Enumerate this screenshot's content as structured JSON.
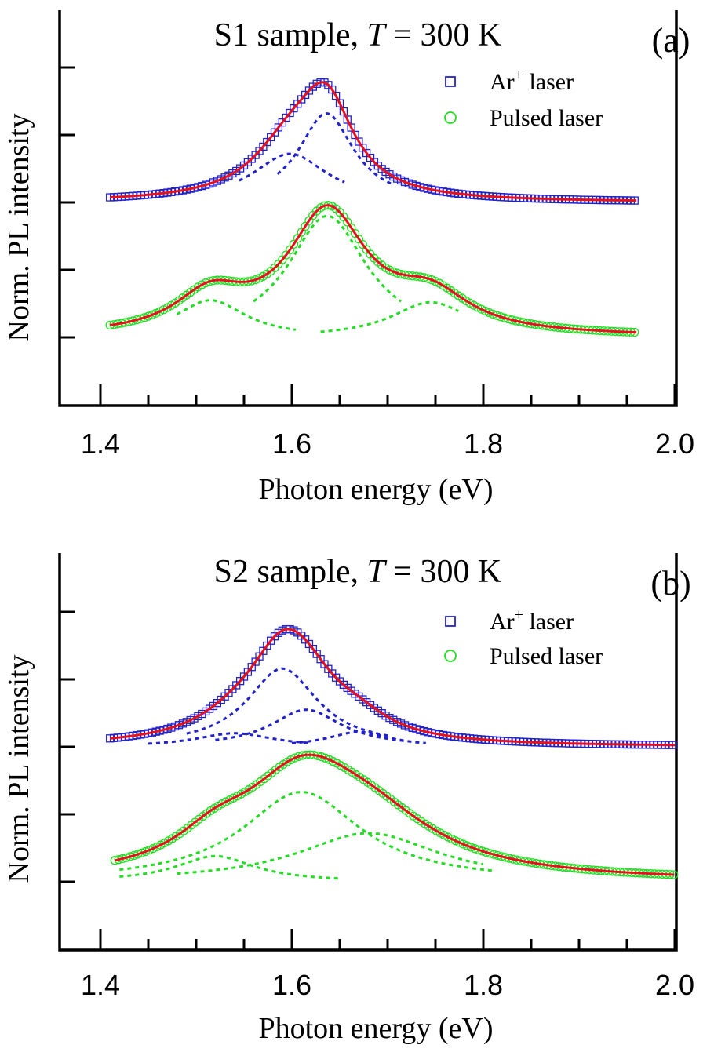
{
  "chart_data": [
    {
      "type": "line",
      "panel_label": "(a)",
      "title": {
        "prefix": "S1 sample,  ",
        "italic": "T",
        "suffix": " = 300 K"
      },
      "xlabel": "Photon energy (eV)",
      "ylabel": "Norm. PL intensity",
      "xlim": [
        1.4,
        2.0
      ],
      "x_ticks": [
        "1.4",
        "1.6",
        "1.8",
        "2.0"
      ],
      "legend_position": "top-right",
      "legend": [
        {
          "base": "Ar",
          "sup": "+",
          "rest": " laser",
          "marker": "square",
          "color": "#2222cc"
        },
        {
          "base": "Pulsed",
          "sup": "",
          "rest": " laser",
          "marker": "circle",
          "color": "#22dd22"
        }
      ],
      "series": [
        {
          "name": "Ar+ laser",
          "color": "#2222cc",
          "offset": 2,
          "x_range": [
            1.41,
            1.96
          ],
          "components": [
            {
              "center": 1.598,
              "amp": 0.72,
              "width": 0.048
            },
            {
              "center": 1.636,
              "amp": 1.32,
              "width": 0.035
            }
          ],
          "component_ranges": [
            [
              1.545,
              1.655
            ],
            [
              1.585,
              1.705
            ]
          ]
        },
        {
          "name": "Pulsed laser",
          "color": "#22dd22",
          "offset": 0,
          "x_range": [
            1.41,
            1.96
          ],
          "components": [
            {
              "center": 1.515,
              "amp": 0.55,
              "width": 0.045
            },
            {
              "center": 1.637,
              "amp": 1.8,
              "width": 0.05
            },
            {
              "center": 1.745,
              "amp": 0.52,
              "width": 0.05
            }
          ],
          "component_ranges": [
            [
              1.48,
              1.605
            ],
            [
              1.56,
              1.715
            ],
            [
              1.63,
              1.775
            ]
          ]
        }
      ]
    },
    {
      "type": "line",
      "panel_label": "(b)",
      "title": {
        "prefix": "S2 sample,  ",
        "italic": "T",
        "suffix": " = 300 K"
      },
      "xlabel": "Photon energy (eV)",
      "ylabel": "Norm. PL intensity",
      "xlim": [
        1.4,
        2.0
      ],
      "x_ticks": [
        "1.4",
        "1.6",
        "1.8",
        "2.0"
      ],
      "legend_position": "top-right",
      "legend": [
        {
          "base": "Ar",
          "sup": "+",
          "rest": " laser",
          "marker": "square",
          "color": "#2222cc"
        },
        {
          "base": "Pulsed",
          "sup": "",
          "rest": " laser",
          "marker": "circle",
          "color": "#22dd22"
        }
      ],
      "series": [
        {
          "name": "Ar+ laser",
          "color": "#2222cc",
          "offset": 2,
          "x_range": [
            1.41,
            2.0
          ],
          "components": [
            {
              "center": 1.59,
              "amp": 1.16,
              "width": 0.045
            },
            {
              "center": 1.615,
              "amp": 0.55,
              "width": 0.045
            },
            {
              "center": 1.54,
              "amp": 0.2,
              "width": 0.05
            },
            {
              "center": 1.67,
              "amp": 0.22,
              "width": 0.04
            }
          ],
          "component_ranges": [
            [
              1.49,
              1.7
            ],
            [
              1.52,
              1.72
            ],
            [
              1.45,
              1.62
            ],
            [
              1.6,
              1.74
            ]
          ]
        },
        {
          "name": "Pulsed laser",
          "color": "#22dd22",
          "offset": 0,
          "x_range": [
            1.415,
            2.0
          ],
          "components": [
            {
              "center": 1.61,
              "amp": 1.33,
              "width": 0.075
            },
            {
              "center": 1.52,
              "amp": 0.38,
              "width": 0.05
            },
            {
              "center": 1.68,
              "amp": 0.72,
              "width": 0.09
            }
          ],
          "component_ranges": [
            [
              1.42,
              1.81
            ],
            [
              1.42,
              1.65
            ],
            [
              1.48,
              1.8
            ]
          ]
        }
      ]
    }
  ]
}
